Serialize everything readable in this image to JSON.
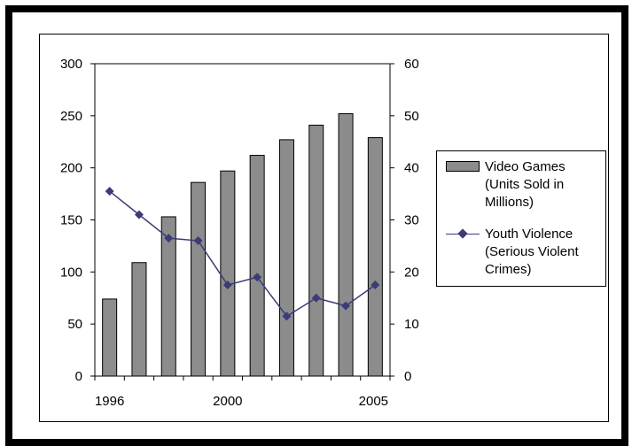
{
  "chart_data": {
    "type": "bar",
    "x_tick_labels": [
      "1996",
      "2000",
      "2005"
    ],
    "categories": [
      "1996",
      "1997",
      "1998",
      "1999",
      "2000",
      "2001",
      "2002",
      "2003",
      "2004",
      "2005"
    ],
    "left_axis": {
      "ylim": [
        0,
        300
      ],
      "ticks": [
        "300",
        "250",
        "200",
        "150",
        "100",
        "50",
        "0"
      ]
    },
    "right_axis": {
      "ylim": [
        0,
        60
      ],
      "ticks": [
        "60",
        "50",
        "40",
        "30",
        "20",
        "10",
        "0"
      ]
    },
    "series": [
      {
        "name": "Video Games (Units Sold in Millions)",
        "type": "bar",
        "axis": "left",
        "color": "#8c8c8c",
        "values": [
          74,
          109,
          153,
          186,
          197,
          212,
          227,
          241,
          252,
          229
        ]
      },
      {
        "name": "Youth Violence (Serious Violent Crimes)",
        "type": "line",
        "axis": "right",
        "color": "#3b3b78",
        "values": [
          35.5,
          31,
          26.5,
          26,
          17.5,
          19,
          11.5,
          15,
          13.5,
          17.5
        ]
      }
    ],
    "legend": {
      "bars": [
        "Video Games",
        "(Units Sold in",
        "Millions)"
      ],
      "line": [
        "Youth Violence",
        "(Serious Violent",
        "Crimes)"
      ],
      "placement": "right"
    },
    "grid": false
  }
}
